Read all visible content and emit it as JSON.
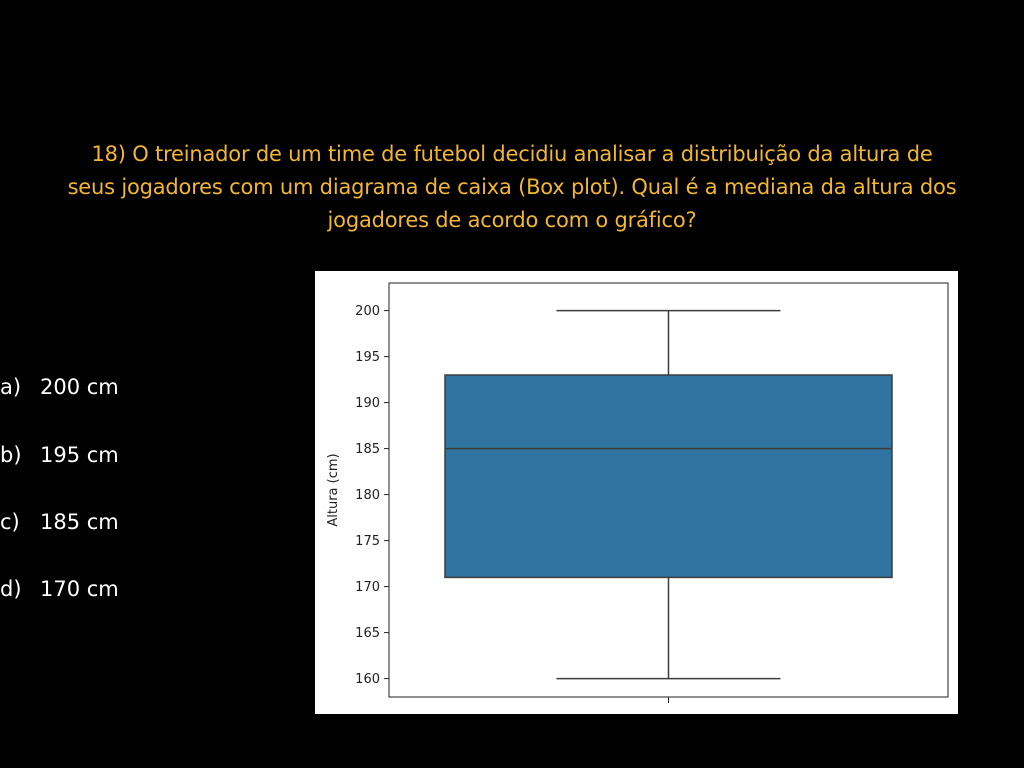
{
  "question": {
    "line1": "18) O treinador de um time de futebol decidiu analisar a distribuição da altura de",
    "line2": "seus jogadores com um diagrama de caixa (Box plot). Qual é a mediana da altura dos",
    "line3": "jogadores de acordo com o gráfico?"
  },
  "options": [
    {
      "letter": "a)",
      "text": "200 cm"
    },
    {
      "letter": "b)",
      "text": "195 cm"
    },
    {
      "letter": "c)",
      "text": "185 cm"
    },
    {
      "letter": "d)",
      "text": "170 cm"
    }
  ],
  "colors": {
    "background": "#000000",
    "question_text": "#f2b632",
    "option_text": "#ffffff",
    "box_fill": "#3274a1"
  },
  "chart_data": {
    "type": "box",
    "ylabel": "Altura (cm)",
    "xlabel": "",
    "ylim": [
      158,
      203
    ],
    "yticks": [
      160,
      165,
      170,
      175,
      180,
      185,
      190,
      195,
      200
    ],
    "box": {
      "min": 160,
      "q1": 171,
      "median": 185,
      "q3": 193,
      "max": 200
    }
  }
}
